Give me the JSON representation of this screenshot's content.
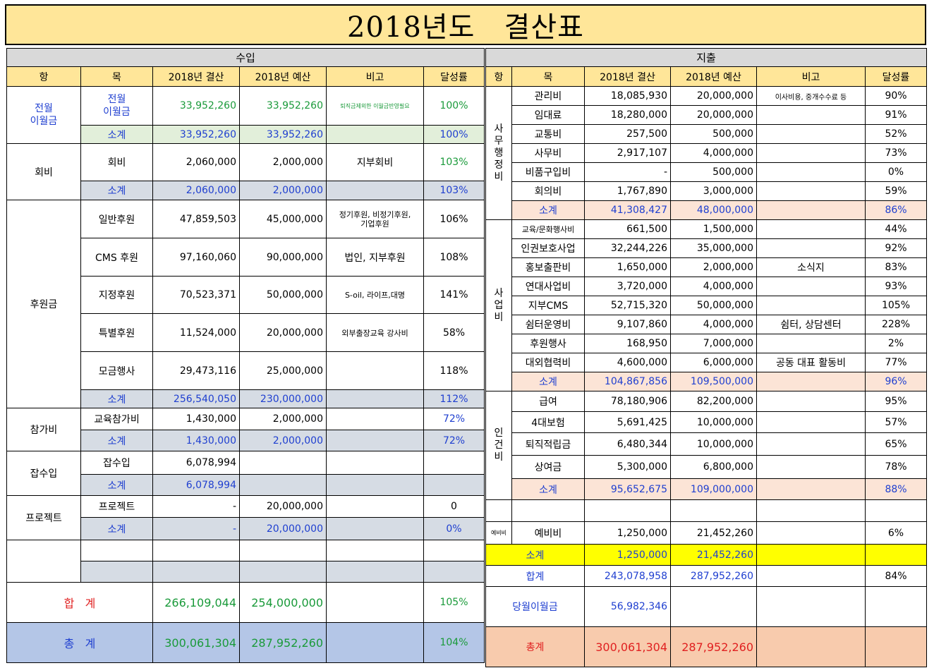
{
  "title": "2018년도   결산표",
  "headers": {
    "income_section": "수입",
    "expense_section": "지출",
    "hang": "항",
    "mok": "목",
    "actual": "2018년 결산",
    "budget": "2018년 예산",
    "note": "비고",
    "rate": "달성률"
  },
  "income": {
    "carryover": {
      "category": "전월\n이월금",
      "item": "전월\n이월금",
      "actual": "33,952,260",
      "budget": "33,952,260",
      "note": "퇴직금제외한 이월금반영필요",
      "rate": "100%",
      "subtotal_label": "소계",
      "subtotal_actual": "33,952,260",
      "subtotal_budget": "33,952,260",
      "subtotal_rate": "100%"
    },
    "dues": {
      "category": "회비",
      "item": "회비",
      "actual": "2,060,000",
      "budget": "2,000,000",
      "note": "지부회비",
      "rate": "103%",
      "subtotal_label": "소계",
      "subtotal_actual": "2,060,000",
      "subtotal_budget": "2,000,000",
      "subtotal_rate": "103%"
    },
    "donation": {
      "category": "후원금",
      "rows": [
        {
          "item": "일반후원",
          "actual": "47,859,503",
          "budget": "45,000,000",
          "note": "정기후원, 비정기후원,\n기업후원",
          "rate": "106%"
        },
        {
          "item": "CMS 후원",
          "actual": "97,160,060",
          "budget": "90,000,000",
          "note": "법인, 지부후원",
          "rate": "108%"
        },
        {
          "item": "지정후원",
          "actual": "70,523,371",
          "budget": "50,000,000",
          "note": "S-oil, 라이프,대명",
          "rate": "141%"
        },
        {
          "item": "특별후원",
          "actual": "11,524,000",
          "budget": "20,000,000",
          "note": "외부출장교육 강사비",
          "rate": "58%"
        },
        {
          "item": "모금행사",
          "actual": "29,473,116",
          "budget": "25,000,000",
          "note": "",
          "rate": "118%"
        }
      ],
      "subtotal_label": "소계",
      "subtotal_actual": "256,540,050",
      "subtotal_budget": "230,000,000",
      "subtotal_rate": "112%"
    },
    "participation": {
      "category": "참가비",
      "item": "교육참가비",
      "actual": "1,430,000",
      "budget": "2,000,000",
      "rate": "72%",
      "subtotal_label": "소계",
      "subtotal_actual": "1,430,000",
      "subtotal_budget": "2,000,000",
      "subtotal_rate": "72%"
    },
    "misc": {
      "category": "잡수입",
      "item": "잡수입",
      "actual": "6,078,994",
      "subtotal_label": "소계",
      "subtotal_actual": "6,078,994"
    },
    "project": {
      "category": "프로젝트",
      "item": "프로젝트",
      "actual": "-",
      "budget": "20,000,000",
      "rate": "0",
      "subtotal_label": "소계",
      "subtotal_actual": "-",
      "subtotal_budget": "20,000,000",
      "subtotal_rate": "0%"
    },
    "total": {
      "label": "합   계",
      "actual": "266,109,044",
      "budget": "254,000,000",
      "rate": "105%"
    },
    "grand_total": {
      "label": "총   계",
      "actual": "300,061,304",
      "budget": "287,952,260",
      "rate": "104%"
    }
  },
  "expense": {
    "admin": {
      "category": "사무행정비",
      "rows": [
        {
          "item": "관리비",
          "actual": "18,085,930",
          "budget": "20,000,000",
          "note": "이사비용, 중개수수료 등",
          "rate": "90%"
        },
        {
          "item": "임대료",
          "actual": "18,280,000",
          "budget": "20,000,000",
          "note": "",
          "rate": "91%"
        },
        {
          "item": "교통비",
          "actual": "257,500",
          "budget": "500,000",
          "note": "",
          "rate": "52%"
        },
        {
          "item": "사무비",
          "actual": "2,917,107",
          "budget": "4,000,000",
          "note": "",
          "rate": "73%"
        },
        {
          "item": "비품구입비",
          "actual": "-",
          "budget": "500,000",
          "note": "",
          "rate": "0%"
        },
        {
          "item": "회의비",
          "actual": "1,767,890",
          "budget": "3,000,000",
          "note": "",
          "rate": "59%"
        }
      ],
      "subtotal_label": "소계",
      "subtotal_actual": "41,308,427",
      "subtotal_budget": "48,000,000",
      "subtotal_rate": "86%"
    },
    "business": {
      "category": "사업비",
      "rows": [
        {
          "item": "교육/문화행사비",
          "actual": "661,500",
          "budget": "1,500,000",
          "note": "",
          "rate": "44%"
        },
        {
          "item": "인권보호사업",
          "actual": "32,244,226",
          "budget": "35,000,000",
          "note": "",
          "rate": "92%"
        },
        {
          "item": "홍보출판비",
          "actual": "1,650,000",
          "budget": "2,000,000",
          "note": "소식지",
          "rate": "83%"
        },
        {
          "item": "연대사업비",
          "actual": "3,720,000",
          "budget": "4,000,000",
          "note": "",
          "rate": "93%"
        },
        {
          "item": "지부CMS",
          "actual": "52,715,320",
          "budget": "50,000,000",
          "note": "",
          "rate": "105%"
        },
        {
          "item": "쉼터운영비",
          "actual": "9,107,860",
          "budget": "4,000,000",
          "note": "쉼터, 상담센터",
          "rate": "228%"
        },
        {
          "item": "후원행사",
          "actual": "168,950",
          "budget": "7,000,000",
          "note": "",
          "rate": "2%"
        },
        {
          "item": "대외협력비",
          "actual": "4,600,000",
          "budget": "6,000,000",
          "note": "공동 대표 활동비",
          "rate": "77%"
        }
      ],
      "subtotal_label": "소계",
      "subtotal_actual": "104,867,856",
      "subtotal_budget": "109,500,000",
      "subtotal_rate": "96%"
    },
    "personnel": {
      "category": "인건비",
      "rows": [
        {
          "item": "급여",
          "actual": "78,180,906",
          "budget": "82,200,000",
          "note": "",
          "rate": "95%"
        },
        {
          "item": "4대보험",
          "actual": "5,691,425",
          "budget": "10,000,000",
          "note": "",
          "rate": "57%"
        },
        {
          "item": "퇴직적립금",
          "actual": "6,480,344",
          "budget": "10,000,000",
          "note": "",
          "rate": "65%"
        },
        {
          "item": "상여금",
          "actual": "5,300,000",
          "budget": "6,800,000",
          "note": "",
          "rate": "78%"
        }
      ],
      "subtotal_label": "소계",
      "subtotal_actual": "95,652,675",
      "subtotal_budget": "109,000,000",
      "subtotal_rate": "88%"
    },
    "reserve": {
      "category": "예비비",
      "item": "예비비",
      "actual": "1,250,000",
      "budget": "21,452,260",
      "rate": "6%",
      "subtotal_label": "소계",
      "subtotal_actual": "1,250,000",
      "subtotal_budget": "21,452,260"
    },
    "total": {
      "label": "합계",
      "actual": "243,078,958",
      "budget": "287,952,260",
      "rate": "84%"
    },
    "carryover": {
      "label": "당월이월금",
      "actual": "56,982,346"
    },
    "grand_total": {
      "label": "총계",
      "actual": "300,061,304",
      "budget": "287,952,260"
    }
  },
  "colors": {
    "title_bg": "#ffe699",
    "section_bg": "#d9d9d9",
    "header_bg": "#ffe699",
    "subtotal_green": "#e2efda",
    "subtotal_gray": "#d6dce4",
    "subtotal_pink": "#fce4d6",
    "reserve_yellow": "#ffff00",
    "grand_total_blue": "#b4c6e7",
    "grand_total_orange": "#f8cbad",
    "blue_text": "#1f3fd0",
    "green_text": "#1a9a3a",
    "red_text": "#e02020"
  }
}
